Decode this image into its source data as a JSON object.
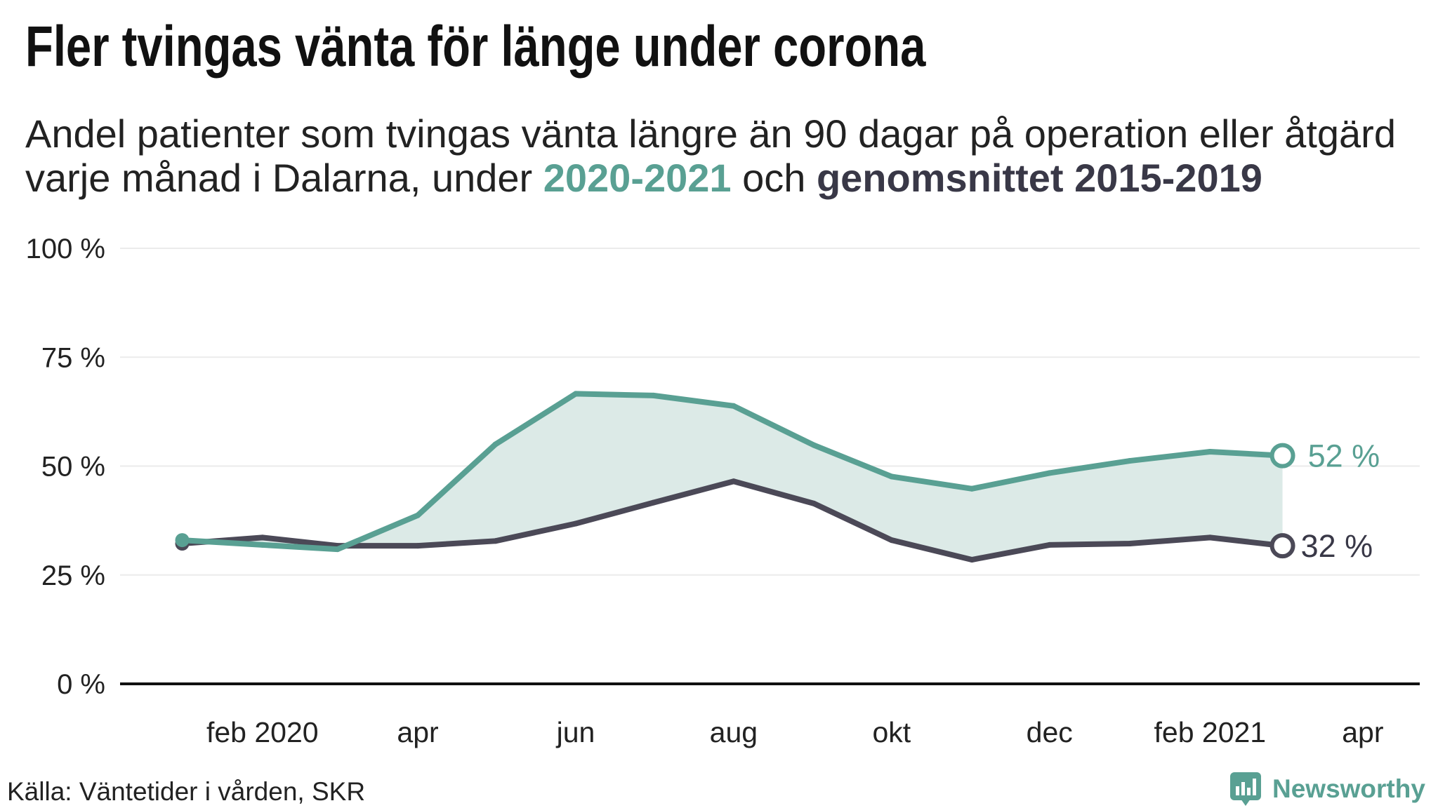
{
  "colors": {
    "current": "#59a093",
    "average": "#4b4957",
    "average_text": "#393847",
    "area": "#dceae7",
    "grid": "#ebebeb",
    "axis": "#111111"
  },
  "chart_data": {
    "type": "line",
    "title": "Fler tvingas vänta för länge under corona",
    "subtitle": {
      "line1": "Andel patienter som tvingas vänta längre än 90 dagar på operation eller åtgärd",
      "line2_prefix": "varje månad i Dalarna, under ",
      "line2_join": " och "
    },
    "x": [
      "2020-01-01",
      "2020-02-01",
      "2020-03-01",
      "2020-04-01",
      "2020-05-01",
      "2020-06-01",
      "2020-07-01",
      "2020-08-01",
      "2020-09-01",
      "2020-10-01",
      "2020-11-01",
      "2020-12-01",
      "2021-01-01",
      "2021-02-01",
      "2021-03-01"
    ],
    "series": [
      {
        "name": "2020-2021",
        "values": [
          33.0,
          31.9,
          30.9,
          38.7,
          55.0,
          66.6,
          66.2,
          63.8,
          54.8,
          47.6,
          44.8,
          48.4,
          51.2,
          53.3,
          52.4
        ],
        "end_label": "52 %"
      },
      {
        "name": "genomsnittet 2015-2019",
        "values": [
          32.2,
          33.6,
          31.7,
          31.7,
          32.8,
          36.8,
          41.6,
          46.5,
          41.4,
          33.0,
          28.5,
          31.9,
          32.2,
          33.6,
          31.7
        ],
        "end_label": "32 %"
      }
    ],
    "x_ticks": [
      {
        "date": "2020-02-01",
        "label": "feb 2020"
      },
      {
        "date": "2020-04-01",
        "label": "apr"
      },
      {
        "date": "2020-06-01",
        "label": "jun"
      },
      {
        "date": "2020-08-01",
        "label": "aug"
      },
      {
        "date": "2020-10-01",
        "label": "okt"
      },
      {
        "date": "2020-12-01",
        "label": "dec"
      },
      {
        "date": "2021-02-01",
        "label": "feb 2021"
      },
      {
        "date": "2021-04-01",
        "label": "apr"
      }
    ],
    "y_ticks": [
      {
        "value": 0,
        "label": "0 %"
      },
      {
        "value": 25,
        "label": "25 %"
      },
      {
        "value": 50,
        "label": "50 %"
      },
      {
        "value": 75,
        "label": "75 %"
      },
      {
        "value": 100,
        "label": "100 %"
      }
    ],
    "xlim": [
      "2019-12-08",
      "2021-04-23"
    ],
    "ylim": [
      0,
      100
    ],
    "grid": true
  },
  "source": "Källa: Väntetider i vården, SKR",
  "logo": {
    "text": "Newsworthy",
    "icon": "newsworthy-logo-icon"
  }
}
